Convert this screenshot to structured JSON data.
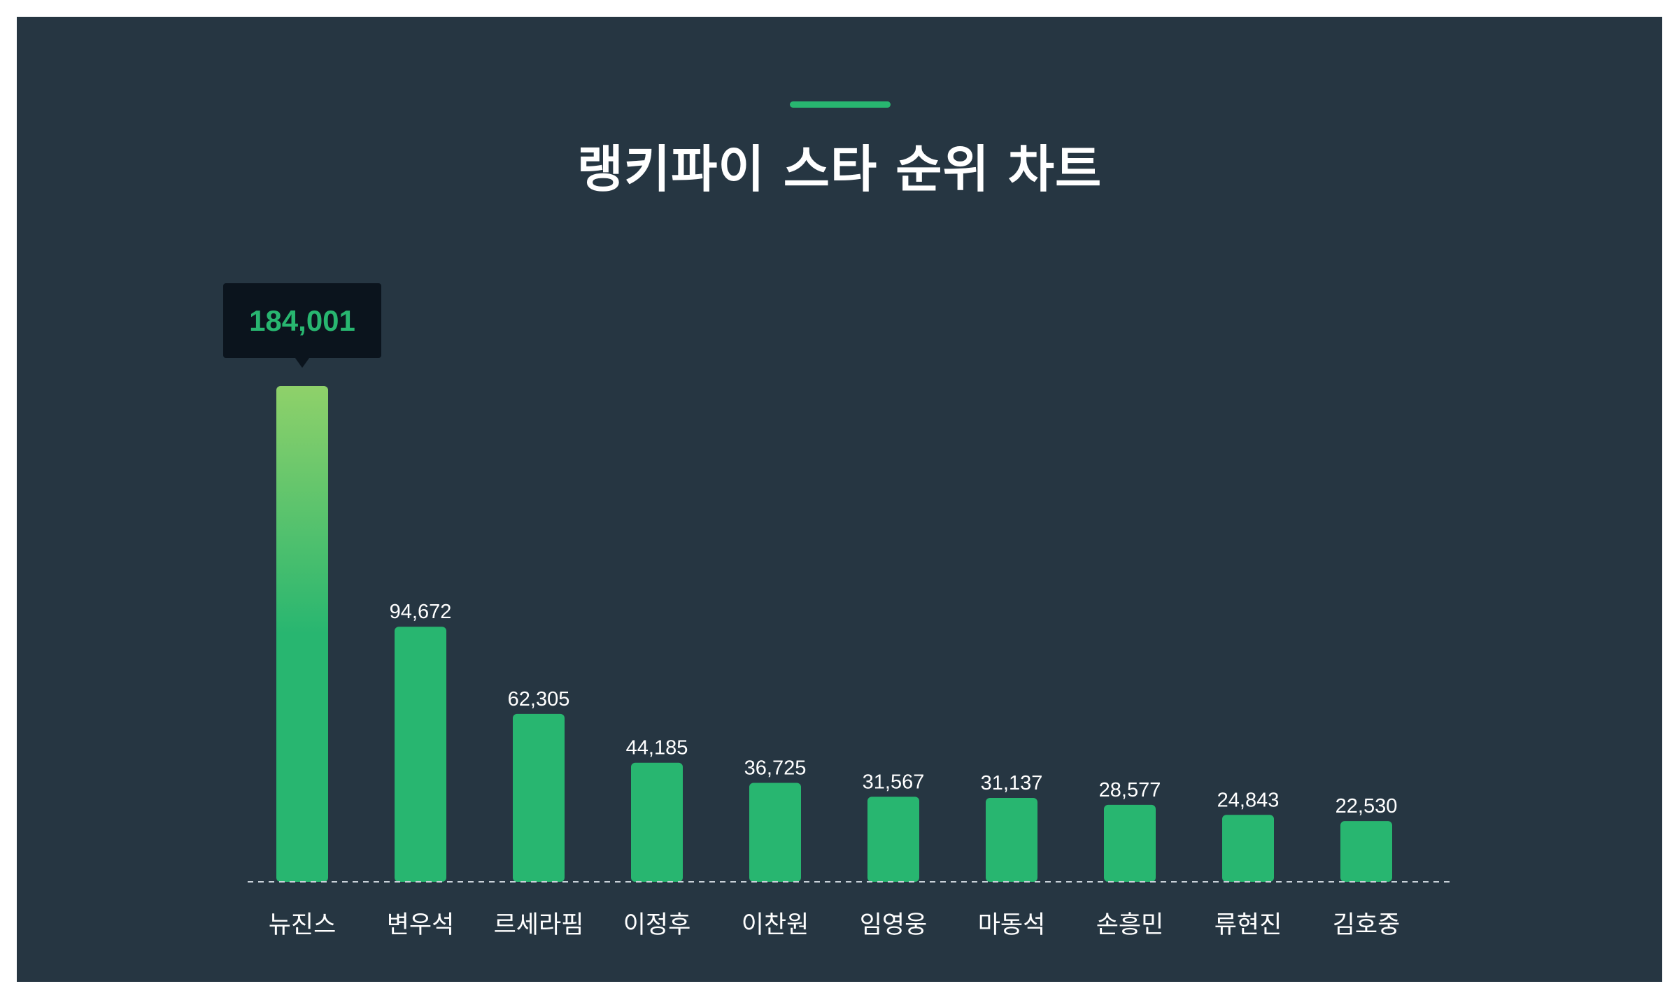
{
  "title": "랭키파이 스타 순위 차트",
  "colors": {
    "background": "#263642",
    "bar": "#28b670",
    "bar_top_highlight": "#8fd16a",
    "tooltip_bg": "#0b141d",
    "accent": "#28b670"
  },
  "chart_data": {
    "type": "bar",
    "categories": [
      "뉴진스",
      "변우석",
      "르세라핌",
      "이정후",
      "이찬원",
      "임영웅",
      "마동석",
      "손흥민",
      "류현진",
      "김호중"
    ],
    "values": [
      184001,
      94672,
      62305,
      44185,
      36725,
      31567,
      31137,
      28577,
      24843,
      22530
    ],
    "value_labels": [
      "184,001",
      "94,672",
      "62,305",
      "44,185",
      "36,725",
      "31,567",
      "31,137",
      "28,577",
      "24,843",
      "22,530"
    ],
    "title": "랭키파이 스타 순위 차트",
    "xlabel": "",
    "ylabel": "",
    "ylim": [
      0,
      184001
    ],
    "grid": false,
    "legend": "none",
    "highlight_index": 0
  }
}
